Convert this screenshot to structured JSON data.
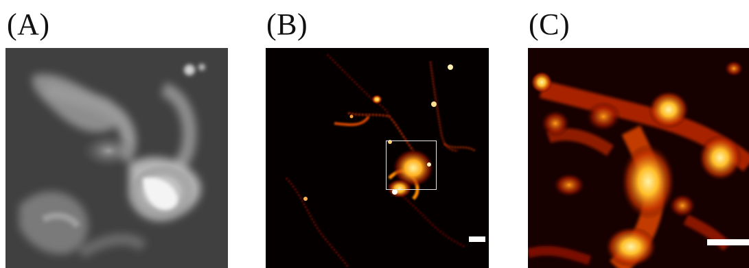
{
  "figure": {
    "panels": [
      {
        "id": "A",
        "label": "(A)",
        "kind": "widefield fluorescence",
        "colormap": "grayscale"
      },
      {
        "id": "B",
        "label": "(B)",
        "kind": "super-resolution reconstruction",
        "colormap": "hot",
        "has_roi_box": true,
        "has_scale_bar": true
      },
      {
        "id": "C",
        "label": "(C)",
        "kind": "zoom of boxed region in B",
        "colormap": "hot",
        "has_scale_bar": true
      }
    ]
  },
  "colors": {
    "background": "#ffffff",
    "label_text": "#111111",
    "scale_bar": "#ffffff",
    "roi_box": "#e6e6e6",
    "hot_low": "#3a0000",
    "hot_mid": "#d24a00",
    "hot_high": "#ffe27a"
  }
}
